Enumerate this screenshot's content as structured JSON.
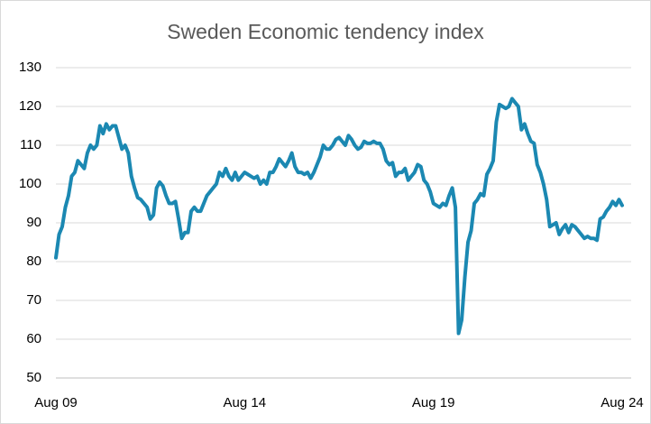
{
  "chart_data": {
    "type": "line",
    "title": "Sweden Economic tendency index",
    "categories": [
      "Aug 09",
      null,
      null,
      null,
      null,
      null,
      null,
      null,
      null,
      null,
      null,
      null,
      null,
      null,
      null,
      null,
      null,
      null,
      null,
      null,
      null,
      null,
      null,
      null,
      null,
      null,
      null,
      null,
      null,
      null,
      null,
      null,
      null,
      null,
      null,
      null,
      null,
      null,
      null,
      null,
      null,
      null,
      null,
      null,
      null,
      null,
      null,
      null,
      null,
      null,
      null,
      null,
      null,
      null,
      null,
      null,
      null,
      null,
      null,
      null,
      "Aug 14",
      null,
      null,
      null,
      null,
      null,
      null,
      null,
      null,
      null,
      null,
      null,
      null,
      null,
      null,
      null,
      null,
      null,
      null,
      null,
      null,
      null,
      null,
      null,
      null,
      null,
      null,
      null,
      null,
      null,
      null,
      null,
      null,
      null,
      null,
      null,
      null,
      null,
      null,
      null,
      null,
      null,
      null,
      null,
      null,
      null,
      null,
      null,
      null,
      null,
      null,
      null,
      null,
      null,
      null,
      null,
      null,
      null,
      null,
      null,
      "Aug 19",
      null,
      null,
      null,
      null,
      null,
      null,
      null,
      null,
      null,
      null,
      null,
      null,
      null,
      null,
      null,
      null,
      null,
      null,
      null,
      null,
      null,
      null,
      null,
      null,
      null,
      null,
      null,
      null,
      null,
      null,
      null,
      null,
      null,
      null,
      null,
      null,
      null,
      null,
      null,
      null,
      null,
      null,
      null,
      null,
      null,
      null,
      null,
      null,
      null,
      null,
      null,
      null,
      null,
      null,
      null,
      null,
      null,
      null,
      null,
      "Aug 24"
    ],
    "values": [
      81,
      87,
      89,
      94,
      97,
      102,
      103,
      106,
      105,
      104,
      108,
      110,
      109,
      110,
      115,
      113,
      115.5,
      114,
      115,
      115,
      112,
      109,
      110,
      108,
      102,
      99,
      96.5,
      96,
      95,
      94,
      91,
      92,
      99,
      100.5,
      99.5,
      97,
      95,
      95,
      95.5,
      91,
      86,
      87.5,
      87.5,
      93,
      94,
      93,
      93,
      95,
      97,
      98,
      99,
      100,
      103,
      102,
      104,
      102,
      101,
      103,
      101,
      102,
      103,
      102.5,
      102,
      101.5,
      102,
      100,
      101,
      100,
      103,
      103,
      104.5,
      106.5,
      105.5,
      104.5,
      106,
      108,
      104.5,
      103,
      103,
      102.5,
      103,
      101.5,
      103,
      105,
      107,
      110,
      109,
      109,
      110,
      111.5,
      112,
      111,
      110,
      112.5,
      111.5,
      110,
      109,
      109.5,
      111,
      110.5,
      110.5,
      111,
      110.5,
      110.5,
      109,
      106,
      105,
      105.5,
      102,
      103,
      103,
      104,
      101,
      102,
      103,
      105,
      104.5,
      101,
      100,
      98,
      95,
      94.5,
      94,
      95,
      94.5,
      97,
      99,
      94,
      61.5,
      65,
      76,
      85,
      88,
      95,
      96,
      97.5,
      97,
      102.5,
      104,
      106,
      116,
      120.5,
      120,
      119.5,
      120,
      122,
      121,
      120,
      114,
      115.5,
      113,
      111,
      110.5,
      105,
      103,
      100,
      96,
      89,
      89.5,
      90,
      87,
      88.5,
      89.5,
      87.5,
      89.5,
      89,
      88,
      87,
      86,
      86.5,
      86,
      86,
      85.5,
      91,
      91.5,
      93,
      94,
      95.5,
      94.5,
      96,
      94.5
    ],
    "color": "#1b88b2",
    "ylim": [
      50,
      130
    ],
    "yticks": [
      50,
      60,
      70,
      80,
      90,
      100,
      110,
      120,
      130
    ],
    "grid": true
  }
}
